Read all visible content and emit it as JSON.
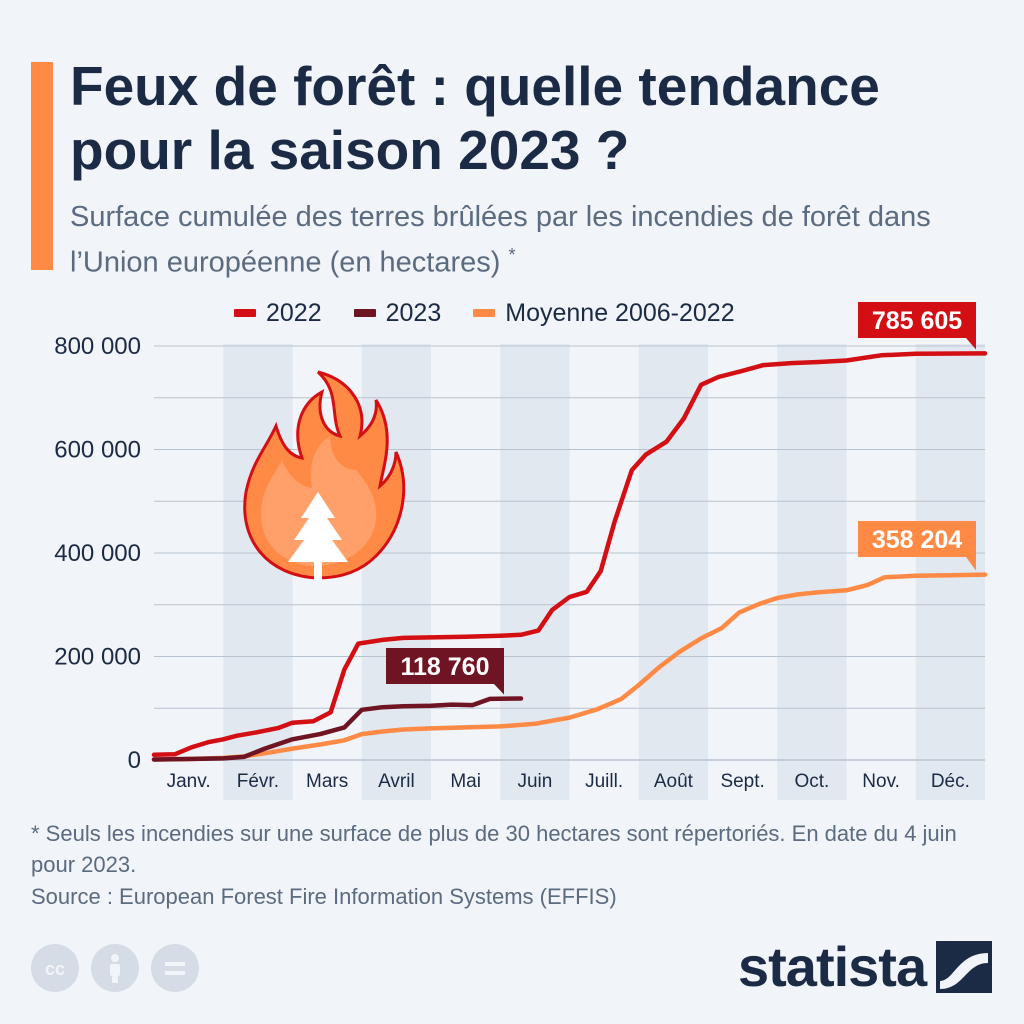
{
  "header": {
    "title": "Feux de forêt : quelle tendance pour la saison 2023 ?",
    "subtitle": "Surface cumulée des terres brûlées par les incendies de forêt dans l’Union européenne (en hectares)",
    "subtitle_mark": "*"
  },
  "footer": {
    "footnote": "* Seuls les incendies sur une surface de plus de 30 hectares sont répertoriés. En date du 4 juin pour 2023.",
    "source": "Source : European Forest Fire Information Systems (EFFIS)",
    "brand": "statista"
  },
  "icons": [
    "forest-fire-icon",
    "creative-commons-icon",
    "attribution-icon",
    "no-derivatives-icon",
    "statista-logo-icon"
  ],
  "colors": {
    "background": "#f1f4f8",
    "band": "#e2e8f0",
    "grid": "#b9c3cf",
    "title": "#1c2b45",
    "accent": "#ff8a46",
    "series_2022": "#d30f14",
    "series_2023": "#6e1422",
    "series_avg": "#ff8a46"
  },
  "chart_data": {
    "type": "line",
    "title": "Feux de forêt : quelle tendance pour la saison 2023 ?",
    "ylabel": "",
    "xlabel": "",
    "ylim": [
      0,
      800000
    ],
    "yticks": [
      0,
      200000,
      400000,
      600000,
      800000
    ],
    "ytick_labels": [
      "0",
      "200 000",
      "400 000",
      "600 000",
      "800 000"
    ],
    "categories": [
      "Janv.",
      "Févr.",
      "Mars",
      "Avril",
      "Mai",
      "Juin",
      "Juill.",
      "Août",
      "Sept.",
      "Oct.",
      "Nov.",
      "Déc."
    ],
    "x_range": [
      0,
      12
    ],
    "grid": true,
    "legend_position": "top",
    "series": [
      {
        "name": "2022",
        "color": "#d30f14",
        "end_label": "785 605",
        "points": [
          [
            0.0,
            10000
          ],
          [
            0.3,
            11000
          ],
          [
            0.55,
            25000
          ],
          [
            0.8,
            35000
          ],
          [
            1.0,
            40000
          ],
          [
            1.2,
            47000
          ],
          [
            1.5,
            54000
          ],
          [
            1.8,
            62000
          ],
          [
            2.0,
            72000
          ],
          [
            2.3,
            75000
          ],
          [
            2.55,
            92000
          ],
          [
            2.75,
            175000
          ],
          [
            2.95,
            225000
          ],
          [
            3.3,
            232000
          ],
          [
            3.6,
            236000
          ],
          [
            4.0,
            237000
          ],
          [
            4.5,
            238000
          ],
          [
            5.0,
            240000
          ],
          [
            5.3,
            242000
          ],
          [
            5.55,
            250000
          ],
          [
            5.75,
            290000
          ],
          [
            6.0,
            315000
          ],
          [
            6.25,
            325000
          ],
          [
            6.45,
            365000
          ],
          [
            6.65,
            460000
          ],
          [
            6.9,
            560000
          ],
          [
            7.1,
            590000
          ],
          [
            7.4,
            615000
          ],
          [
            7.65,
            660000
          ],
          [
            7.9,
            725000
          ],
          [
            8.15,
            740000
          ],
          [
            8.5,
            752000
          ],
          [
            8.8,
            763000
          ],
          [
            9.2,
            767000
          ],
          [
            9.6,
            769000
          ],
          [
            10.0,
            772000
          ],
          [
            10.5,
            782000
          ],
          [
            11.0,
            785000
          ],
          [
            12.0,
            785605
          ]
        ]
      },
      {
        "name": "2023",
        "color": "#6e1422",
        "end_label": "118 760",
        "points": [
          [
            0.0,
            1000
          ],
          [
            0.5,
            2000
          ],
          [
            1.0,
            3000
          ],
          [
            1.3,
            6000
          ],
          [
            1.6,
            22000
          ],
          [
            2.0,
            40000
          ],
          [
            2.4,
            50000
          ],
          [
            2.75,
            63000
          ],
          [
            3.0,
            97000
          ],
          [
            3.3,
            102000
          ],
          [
            3.6,
            104000
          ],
          [
            4.0,
            105000
          ],
          [
            4.3,
            107000
          ],
          [
            4.6,
            106000
          ],
          [
            4.85,
            118000
          ],
          [
            5.3,
            118760
          ]
        ]
      },
      {
        "name": "Moyenne 2006-2022",
        "color": "#ff8a46",
        "end_label": "358 204",
        "points": [
          [
            0.0,
            1000
          ],
          [
            0.5,
            2000
          ],
          [
            1.0,
            4000
          ],
          [
            1.3,
            7000
          ],
          [
            1.6,
            13000
          ],
          [
            2.0,
            22000
          ],
          [
            2.4,
            30000
          ],
          [
            2.75,
            38000
          ],
          [
            3.0,
            50000
          ],
          [
            3.3,
            55000
          ],
          [
            3.6,
            59000
          ],
          [
            4.0,
            61000
          ],
          [
            4.5,
            63000
          ],
          [
            5.0,
            65000
          ],
          [
            5.5,
            70000
          ],
          [
            6.0,
            82000
          ],
          [
            6.4,
            98000
          ],
          [
            6.75,
            118000
          ],
          [
            7.0,
            145000
          ],
          [
            7.3,
            180000
          ],
          [
            7.6,
            210000
          ],
          [
            7.9,
            235000
          ],
          [
            8.2,
            255000
          ],
          [
            8.45,
            285000
          ],
          [
            8.75,
            302000
          ],
          [
            9.0,
            313000
          ],
          [
            9.3,
            320000
          ],
          [
            9.6,
            324000
          ],
          [
            10.0,
            328000
          ],
          [
            10.3,
            338000
          ],
          [
            10.55,
            353000
          ],
          [
            11.0,
            356000
          ],
          [
            11.5,
            357000
          ],
          [
            12.0,
            358204
          ]
        ]
      }
    ]
  }
}
